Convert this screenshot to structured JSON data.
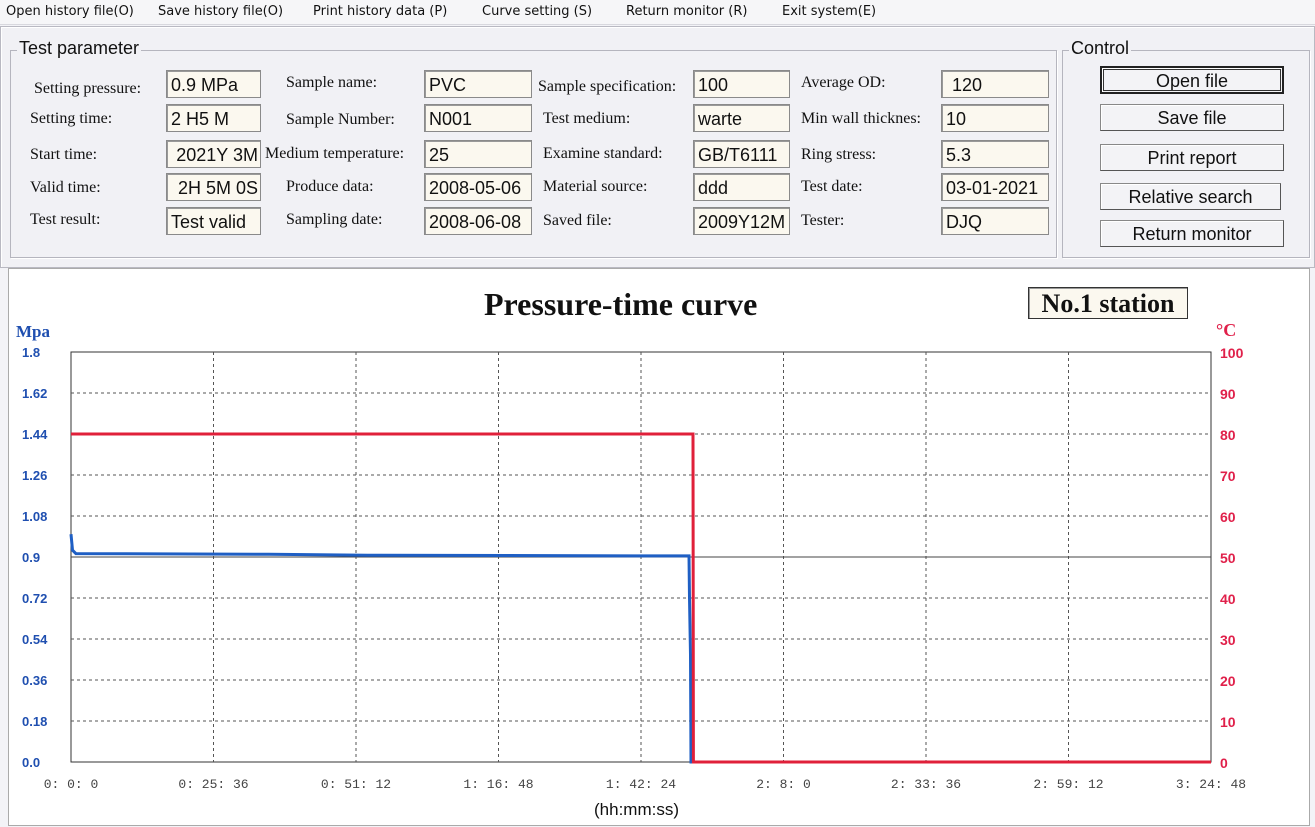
{
  "menu": [
    "Open history file(O)",
    "Save history file(O)",
    "Print history data (P)",
    "Curve setting (S)",
    "Return monitor (R)",
    "Exit system(E)"
  ],
  "test_parameter": {
    "title": "Test parameter",
    "fields": [
      {
        "label": "Setting pressure:",
        "value": "0.9 MPa"
      },
      {
        "label": "Setting time:",
        "value": "2 H5 M"
      },
      {
        "label": "Start time:",
        "value": "2021Y 3M"
      },
      {
        "label": "Valid time:",
        "value": "2H 5M 0S"
      },
      {
        "label": "Test result:",
        "value": "Test valid"
      },
      {
        "label": "Sample name:",
        "value": "PVC"
      },
      {
        "label": "Sample Number:",
        "value": "N001"
      },
      {
        "label": "Medium temperature:",
        "value": "25"
      },
      {
        "label": "Produce data:",
        "value": "2008-05-06"
      },
      {
        "label": "Sampling date:",
        "value": "2008-06-08"
      },
      {
        "label": "Sample specification:",
        "value": "100"
      },
      {
        "label": "Test medium:",
        "value": "warte"
      },
      {
        "label": "Examine standard:",
        "value": "GB/T6111"
      },
      {
        "label": "Material source:",
        "value": "ddd"
      },
      {
        "label": "Saved file:",
        "value": "2009Y12M"
      },
      {
        "label": "Average OD:",
        "value": "120"
      },
      {
        "label": "Min wall thicknes:",
        "value": "10"
      },
      {
        "label": "Ring stress:",
        "value": "5.3"
      },
      {
        "label": "Test date:",
        "value": "03-01-2021"
      },
      {
        "label": "Tester:",
        "value": "DJQ"
      }
    ]
  },
  "control": {
    "title": "Control",
    "buttons": [
      "Open file",
      "Save file",
      "Print report",
      "Relative search",
      "Return monitor"
    ]
  },
  "chart_data": {
    "type": "line",
    "title": "Pressure-time curve",
    "station": "No.1 station",
    "ylabel_left": "Mpa",
    "ylabel_right": "°C",
    "xlabel": "(hh:mm:ss)",
    "x_ticks": [
      "0: 0: 0",
      "0: 25: 36",
      "0: 51: 12",
      "1: 16: 48",
      "1: 42: 24",
      "2: 8: 0",
      "2: 33: 36",
      "2: 59: 12",
      "3: 24: 48"
    ],
    "y_left_ticks": [
      "0.0",
      "0.18",
      "0.36",
      "0.54",
      "0.72",
      "0.9",
      "1.08",
      "1.26",
      "1.44",
      "1.62",
      "1.8"
    ],
    "y_right_ticks": [
      "0",
      "10",
      "20",
      "30",
      "40",
      "50",
      "60",
      "70",
      "80",
      "90",
      "100"
    ],
    "xlim_minutes": [
      0,
      230.4
    ],
    "ylim_left": [
      0,
      1.8
    ],
    "ylim_right": [
      0,
      100
    ],
    "setpoint_line_mpa": 0.9,
    "colors": {
      "pressure": "#1f5fc4",
      "temperature": "#e0203a",
      "left_axis": "#1f4fb0",
      "right_axis": "#e0204a"
    },
    "series": [
      {
        "axis": "left",
        "points": [
          [
            0,
            1.0
          ],
          [
            0.3,
            0.93
          ],
          [
            1,
            0.915
          ],
          [
            40,
            0.912
          ],
          [
            60,
            0.908
          ],
          [
            120,
            0.905
          ],
          [
            124.9,
            0.905
          ],
          [
            125,
            0.72
          ],
          [
            125.2,
            0.47
          ],
          [
            125.3,
            0.0
          ],
          [
            230.4,
            0.0
          ]
        ]
      },
      {
        "axis": "right",
        "points": [
          [
            0,
            80
          ],
          [
            125.7,
            80
          ],
          [
            125.8,
            0
          ],
          [
            230.4,
            0
          ]
        ]
      }
    ]
  }
}
